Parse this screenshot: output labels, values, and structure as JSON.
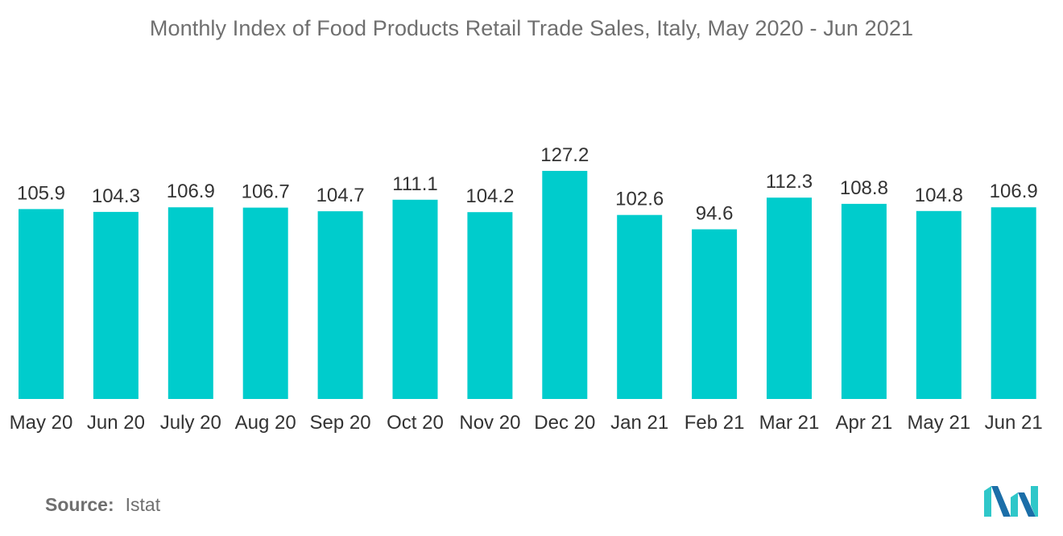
{
  "colors": {
    "bar": "#00cccc",
    "title": "#6f6f6f",
    "text": "#333333",
    "logo_dark": "#1b6ea8",
    "logo_light": "#2fc7c9"
  },
  "source": {
    "label": "Source:",
    "value": "Istat"
  },
  "logo": {
    "icon": "mordor-intelligence-logo-icon"
  },
  "chart_data": {
    "type": "bar",
    "title": "Monthly Index of Food Products Retail Trade Sales, Italy, May 2020 - Jun 2021",
    "xlabel": "",
    "ylabel": "",
    "categories": [
      "May 20",
      "Jun 20",
      "July 20",
      "Aug 20",
      "Sep 20",
      "Oct 20",
      "Nov 20",
      "Dec 20",
      "Jan 21",
      "Feb 21",
      "Mar 21",
      "Apr 21",
      "May 21",
      "Jun 21"
    ],
    "values": [
      105.9,
      104.3,
      106.9,
      106.7,
      104.7,
      111.1,
      104.2,
      127.2,
      102.6,
      94.6,
      112.3,
      108.8,
      104.8,
      106.9
    ],
    "value_labels": [
      "105.9",
      "104.3",
      "106.9",
      "106.7",
      "104.7",
      "111.1",
      "104.2",
      "127.2",
      "102.6",
      "94.6",
      "112.3",
      "108.8",
      "104.8",
      "106.9"
    ],
    "ylim": [
      0,
      127.2
    ],
    "grid": false,
    "legend": "none",
    "data_labels": "above-bars"
  }
}
